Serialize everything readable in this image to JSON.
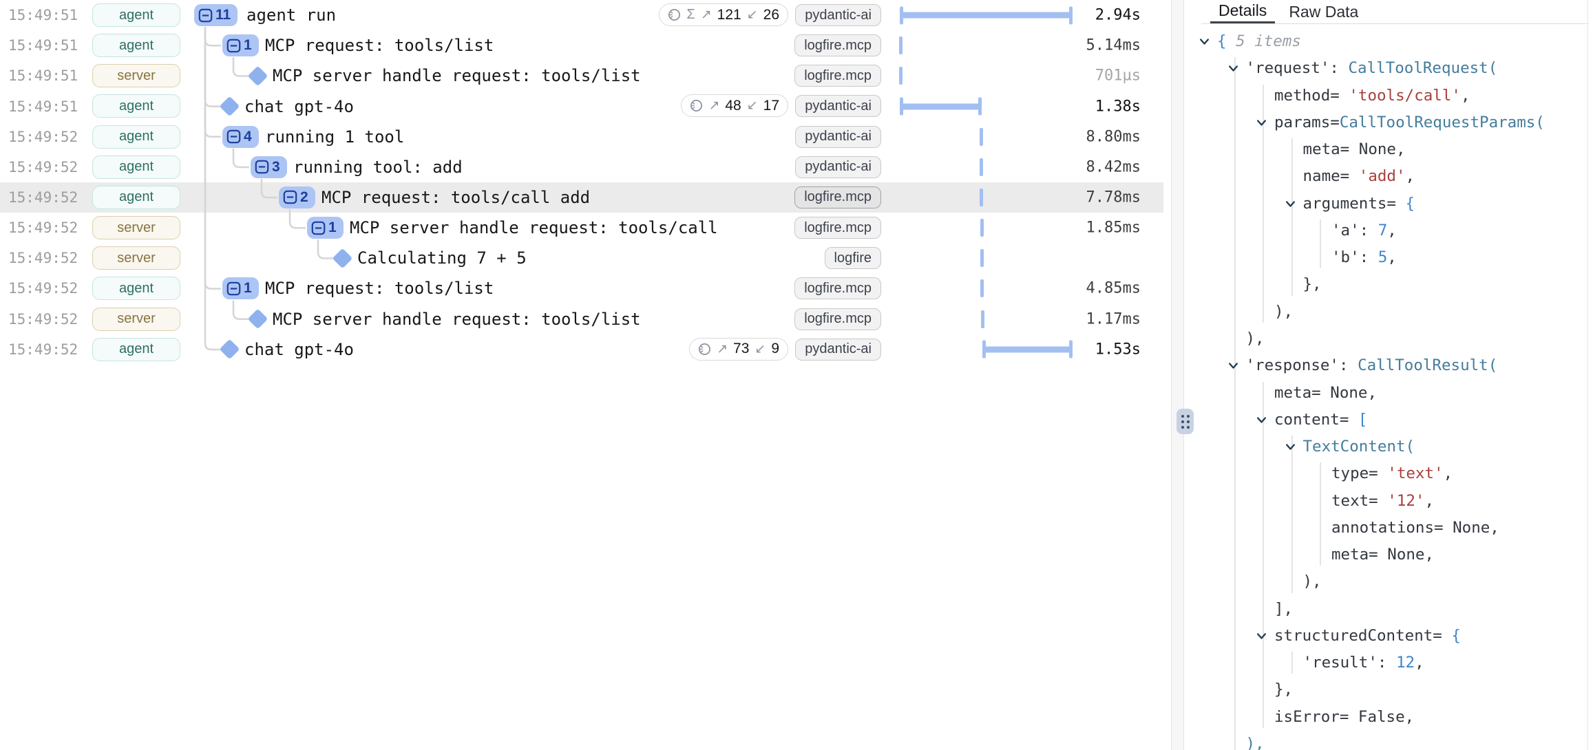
{
  "left_panel": {
    "rows": [
      {
        "time": "15:49:51",
        "actor": "agent",
        "level": 0,
        "node": "badge",
        "count": "11",
        "label": "agent run",
        "tokens": {
          "sigma": true,
          "up": "121",
          "down": "26"
        },
        "service": "pydantic-ai",
        "bar": {
          "type": "range",
          "t0": 0,
          "t1": 2940
        },
        "duration": "2.94s",
        "selected": false
      },
      {
        "time": "15:49:51",
        "actor": "agent",
        "level": 1,
        "node": "badge",
        "count": "1",
        "label": "MCP request: tools/list",
        "tokens": null,
        "service": "logfire.mcp",
        "bar": {
          "type": "tick",
          "t": 5
        },
        "duration": "5.14ms",
        "selected": false
      },
      {
        "time": "15:49:51",
        "actor": "server",
        "level": 2,
        "node": "diamond",
        "count": null,
        "label": "MCP server handle request: tools/list",
        "tokens": null,
        "service": "logfire.mcp",
        "bar": {
          "type": "tick",
          "t": 7
        },
        "duration": "701µs",
        "selected": false
      },
      {
        "time": "15:49:51",
        "actor": "agent",
        "level": 1,
        "node": "diamond",
        "count": null,
        "label": "chat gpt-4o",
        "tokens": {
          "sigma": false,
          "up": "48",
          "down": "17"
        },
        "service": "pydantic-ai",
        "bar": {
          "type": "range",
          "t0": 3,
          "t1": 1383
        },
        "duration": "1.38s",
        "selected": false
      },
      {
        "time": "15:49:52",
        "actor": "agent",
        "level": 1,
        "node": "badge",
        "count": "4",
        "label": "running 1 tool",
        "tokens": null,
        "service": "pydantic-ai",
        "bar": {
          "type": "tick",
          "t": 1390
        },
        "duration": "8.80ms",
        "selected": false
      },
      {
        "time": "15:49:52",
        "actor": "agent",
        "level": 2,
        "node": "badge",
        "count": "3",
        "label": "running tool: add",
        "tokens": null,
        "service": "pydantic-ai",
        "bar": {
          "type": "tick",
          "t": 1392
        },
        "duration": "8.42ms",
        "selected": false
      },
      {
        "time": "15:49:52",
        "actor": "agent",
        "level": 3,
        "node": "badge",
        "count": "2",
        "label": "MCP request: tools/call add",
        "tokens": null,
        "service": "logfire.mcp",
        "bar": {
          "type": "tick",
          "t": 1394
        },
        "duration": "7.78ms",
        "selected": true
      },
      {
        "time": "15:49:52",
        "actor": "server",
        "level": 4,
        "node": "badge",
        "count": "1",
        "label": "MCP server handle request: tools/call",
        "tokens": null,
        "service": "logfire.mcp",
        "bar": {
          "type": "tick",
          "t": 1396
        },
        "duration": "1.85ms",
        "selected": false
      },
      {
        "time": "15:49:52",
        "actor": "server",
        "level": 5,
        "node": "diamond",
        "count": null,
        "label": "Calculating 7 + 5",
        "tokens": null,
        "service": "logfire",
        "bar": {
          "type": "tick",
          "t": 1397
        },
        "duration": null,
        "selected": false
      },
      {
        "time": "15:49:52",
        "actor": "agent",
        "level": 1,
        "node": "badge",
        "count": "1",
        "label": "MCP request: tools/list",
        "tokens": null,
        "service": "logfire.mcp",
        "bar": {
          "type": "tick",
          "t": 1398
        },
        "duration": "4.85ms",
        "selected": false
      },
      {
        "time": "15:49:52",
        "actor": "server",
        "level": 2,
        "node": "diamond",
        "count": null,
        "label": "MCP server handle request: tools/list",
        "tokens": null,
        "service": "logfire.mcp",
        "bar": {
          "type": "tick",
          "t": 1412
        },
        "duration": "1.17ms",
        "selected": false
      },
      {
        "time": "15:49:52",
        "actor": "agent",
        "level": 1,
        "node": "diamond",
        "count": null,
        "label": "chat gpt-4o",
        "tokens": {
          "sigma": false,
          "up": "73",
          "down": "9"
        },
        "service": "pydantic-ai",
        "bar": {
          "type": "range",
          "t0": 1412,
          "t1": 2942
        },
        "duration": "1.53s",
        "selected": false
      }
    ],
    "trace_total_ms": 2942,
    "token_sigma_symbol": "Σ",
    "token_up_arrow": "↗",
    "token_down_arrow": "↙"
  },
  "details_panel": {
    "tabs": [
      {
        "label": "Details",
        "active": true
      },
      {
        "label": "Raw Data",
        "active": false
      }
    ],
    "lines": [
      {
        "level": 0,
        "caret": true,
        "tokens": [
          {
            "text": "{",
            "color": "num"
          },
          {
            "text": " 5 items",
            "color": "dim"
          }
        ]
      },
      {
        "level": 1,
        "caret": true,
        "tokens": [
          {
            "text": "'request': ",
            "color": "k"
          },
          {
            "text": "CallToolRequest(",
            "color": "cls"
          }
        ]
      },
      {
        "level": 2,
        "caret": false,
        "tokens": [
          {
            "text": "method= ",
            "color": "k"
          },
          {
            "text": "'tools/call'",
            "color": "str"
          },
          {
            "text": ",",
            "color": "k"
          }
        ]
      },
      {
        "level": 2,
        "caret": true,
        "tokens": [
          {
            "text": "params=",
            "color": "k"
          },
          {
            "text": "CallToolRequestParams(",
            "color": "cls"
          }
        ]
      },
      {
        "level": 3,
        "caret": false,
        "tokens": [
          {
            "text": "meta= None,",
            "color": "k"
          }
        ]
      },
      {
        "level": 3,
        "caret": false,
        "tokens": [
          {
            "text": "name= ",
            "color": "k"
          },
          {
            "text": "'add'",
            "color": "str"
          },
          {
            "text": ",",
            "color": "k"
          }
        ]
      },
      {
        "level": 3,
        "caret": true,
        "tokens": [
          {
            "text": "arguments= ",
            "color": "k"
          },
          {
            "text": "{",
            "color": "num"
          }
        ]
      },
      {
        "level": 4,
        "caret": false,
        "tokens": [
          {
            "text": "'a': ",
            "color": "k"
          },
          {
            "text": "7",
            "color": "num"
          },
          {
            "text": ",",
            "color": "k"
          }
        ]
      },
      {
        "level": 4,
        "caret": false,
        "tokens": [
          {
            "text": "'b': ",
            "color": "k"
          },
          {
            "text": "5",
            "color": "num"
          },
          {
            "text": ",",
            "color": "k"
          }
        ]
      },
      {
        "level": 3,
        "caret": false,
        "tokens": [
          {
            "text": "},",
            "color": "k"
          }
        ]
      },
      {
        "level": 2,
        "caret": false,
        "tokens": [
          {
            "text": "),",
            "color": "k"
          }
        ]
      },
      {
        "level": 1,
        "caret": false,
        "tokens": [
          {
            "text": "),",
            "color": "k"
          }
        ]
      },
      {
        "level": 1,
        "caret": true,
        "tokens": [
          {
            "text": "'response': ",
            "color": "k"
          },
          {
            "text": "CallToolResult(",
            "color": "cls"
          }
        ]
      },
      {
        "level": 2,
        "caret": false,
        "tokens": [
          {
            "text": "meta= None,",
            "color": "k"
          }
        ]
      },
      {
        "level": 2,
        "caret": true,
        "tokens": [
          {
            "text": "content= ",
            "color": "k"
          },
          {
            "text": "[",
            "color": "num"
          }
        ]
      },
      {
        "level": 3,
        "caret": true,
        "tokens": [
          {
            "text": "TextContent(",
            "color": "cls"
          }
        ]
      },
      {
        "level": 4,
        "caret": false,
        "tokens": [
          {
            "text": "type= ",
            "color": "k"
          },
          {
            "text": "'text'",
            "color": "str"
          },
          {
            "text": ",",
            "color": "k"
          }
        ]
      },
      {
        "level": 4,
        "caret": false,
        "tokens": [
          {
            "text": "text= ",
            "color": "k"
          },
          {
            "text": "'12'",
            "color": "str"
          },
          {
            "text": ",",
            "color": "k"
          }
        ]
      },
      {
        "level": 4,
        "caret": false,
        "tokens": [
          {
            "text": "annotations= None,",
            "color": "k"
          }
        ]
      },
      {
        "level": 4,
        "caret": false,
        "tokens": [
          {
            "text": "meta= None,",
            "color": "k"
          }
        ]
      },
      {
        "level": 3,
        "caret": false,
        "tokens": [
          {
            "text": "),",
            "color": "k"
          }
        ]
      },
      {
        "level": 2,
        "caret": false,
        "tokens": [
          {
            "text": "],",
            "color": "k"
          }
        ]
      },
      {
        "level": 2,
        "caret": true,
        "tokens": [
          {
            "text": "structuredContent= ",
            "color": "k"
          },
          {
            "text": "{",
            "color": "num"
          }
        ]
      },
      {
        "level": 3,
        "caret": false,
        "tokens": [
          {
            "text": "'result': ",
            "color": "k"
          },
          {
            "text": "12",
            "color": "num"
          },
          {
            "text": ",",
            "color": "k"
          }
        ]
      },
      {
        "level": 2,
        "caret": false,
        "tokens": [
          {
            "text": "},",
            "color": "k"
          }
        ]
      },
      {
        "level": 2,
        "caret": false,
        "tokens": [
          {
            "text": "isError= False,",
            "color": "k"
          }
        ]
      },
      {
        "level": 1,
        "caret": false,
        "tokens": [
          {
            "text": "),",
            "color": "cls"
          }
        ]
      }
    ]
  },
  "colors": {
    "accent_blue_bar": "#a3bff2",
    "badge_bg": "#adc5f4",
    "badge_fg": "#1d3f9c",
    "agent_tag_fg": "#2e6e63",
    "server_tag_fg": "#8a7440",
    "selected_row_bg": "#ebebeb",
    "json_class": "#447d9c",
    "json_string": "#a8403c",
    "json_number": "#3f86c9"
  }
}
